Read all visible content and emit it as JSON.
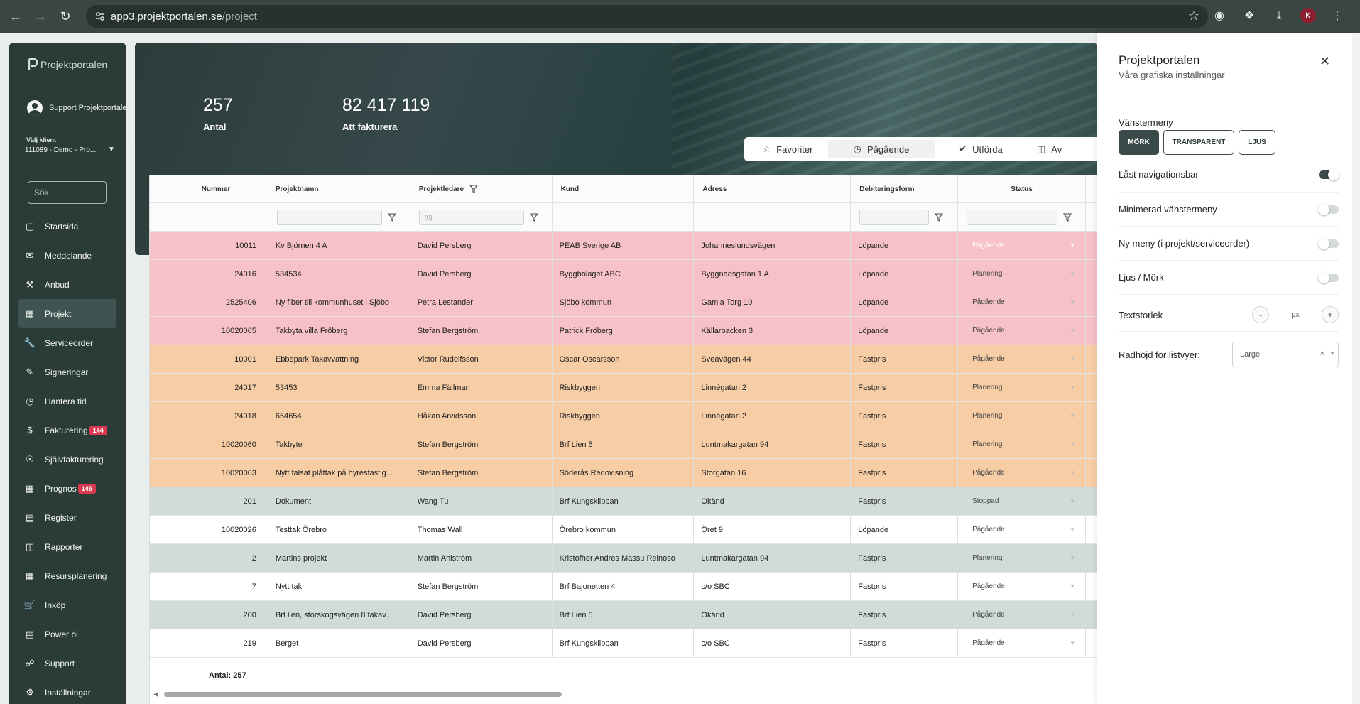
{
  "browser": {
    "url_host": "app3.projektportalen.se",
    "url_path": "/project",
    "profile_initial": "K"
  },
  "sidebar": {
    "logo_text": "Projektportalen",
    "user_name": "Support Projektportalen",
    "client_label": "Välj klient",
    "client_value": "111089 - Demo - Pro...",
    "search_placeholder": "Sök",
    "items": [
      {
        "label": "Startsida",
        "icon": "home-icon"
      },
      {
        "label": "Meddelande",
        "icon": "message-icon"
      },
      {
        "label": "Anbud",
        "icon": "gavel-icon"
      },
      {
        "label": "Projekt",
        "icon": "grid-icon",
        "active": true
      },
      {
        "label": "Serviceorder",
        "icon": "wrench-icon"
      },
      {
        "label": "Signeringar",
        "icon": "signature-icon"
      },
      {
        "label": "Hantera tid",
        "icon": "clock-icon"
      },
      {
        "label": "Fakturering",
        "icon": "dollar-icon",
        "badge": "144"
      },
      {
        "label": "Självfakturering",
        "icon": "coin-icon"
      },
      {
        "label": "Prognos",
        "icon": "grid-icon",
        "badge": "145"
      },
      {
        "label": "Register",
        "icon": "register-icon"
      },
      {
        "label": "Rapporter",
        "icon": "report-icon"
      },
      {
        "label": "Resursplanering",
        "icon": "calendar-icon"
      },
      {
        "label": "Inköp",
        "icon": "cart-icon"
      },
      {
        "label": "Power bi",
        "icon": "chart-icon"
      },
      {
        "label": "Support",
        "icon": "support-icon"
      },
      {
        "label": "Inställningar",
        "icon": "settings-icon"
      }
    ]
  },
  "hero": {
    "stats": [
      {
        "value": "257",
        "label": "Antal"
      },
      {
        "value": "82 417 119",
        "label": "Att fakturera"
      }
    ],
    "tabs": [
      {
        "label": "Favoriter",
        "icon": "star-icon"
      },
      {
        "label": "Pågående",
        "icon": "clock-icon",
        "active": true
      },
      {
        "label": "Utförda",
        "icon": "check-circle-icon"
      },
      {
        "label": "Av",
        "icon": "archive-icon"
      }
    ]
  },
  "table": {
    "columns": [
      "Nummer",
      "Projektnamn",
      "Projektledare",
      "Kund",
      "Adress",
      "Debiteringsform",
      "Status"
    ],
    "filter_projektledare_placeholder": "(0)",
    "rows": [
      {
        "nummer": "10011",
        "projektnamn": "Kv Björnen 4 A",
        "projektledare": "David Persberg",
        "kund": "PEAB Sverige AB",
        "adress": "Johanneslundsvägen",
        "debitering": "Löpande",
        "status": "Pågående",
        "color": "pink"
      },
      {
        "nummer": "24016",
        "projektnamn": "534534",
        "projektledare": "David Persberg",
        "kund": "Byggbolaget ABC",
        "adress": "Byggnadsgatan 1 A",
        "debitering": "Löpande",
        "status": "Planering",
        "color": "pink"
      },
      {
        "nummer": "2525406",
        "projektnamn": "Ny fiber till kommunhuset i Sjöbo",
        "projektledare": "Petra Lestander",
        "kund": "Sjöbo kommun",
        "adress": "Gamla Torg 10",
        "debitering": "Löpande",
        "status": "Pågående",
        "color": "pink"
      },
      {
        "nummer": "10020065",
        "projektnamn": "Takbyta villa Fröberg",
        "projektledare": "Stefan Bergström",
        "kund": "Patrick Fröberg",
        "adress": "Källarbacken 3",
        "debitering": "Löpande",
        "status": "Pågående",
        "color": "pink"
      },
      {
        "nummer": "10001",
        "projektnamn": "Ebbepark Takavvattning",
        "projektledare": "Victor Rudolfsson",
        "kund": "Oscar Oscarsson",
        "adress": "Sveavägen 44",
        "debitering": "Fastpris",
        "status": "Pågående",
        "color": "orange"
      },
      {
        "nummer": "24017",
        "projektnamn": "53453",
        "projektledare": "Emma Fällman",
        "kund": "Riskbyggen",
        "adress": "Linnégatan 2",
        "debitering": "Fastpris",
        "status": "Planering",
        "color": "orange"
      },
      {
        "nummer": "24018",
        "projektnamn": "654654",
        "projektledare": "Håkan Arvidsson",
        "kund": "Riskbyggen",
        "adress": "Linnégatan 2",
        "debitering": "Fastpris",
        "status": "Planering",
        "color": "orange"
      },
      {
        "nummer": "10020060",
        "projektnamn": "Takbyte",
        "projektledare": "Stefan Bergström",
        "kund": "Brf Lien 5",
        "adress": "Luntmakargatan 94",
        "debitering": "Fastpris",
        "status": "Planering",
        "color": "orange"
      },
      {
        "nummer": "10020063",
        "projektnamn": "Nytt falsat plåttak på hyresfastig...",
        "projektledare": "Stefan Bergström",
        "kund": "Söderås Redovisning",
        "adress": "Storgatan 16",
        "debitering": "Fastpris",
        "status": "Pågående",
        "color": "orange"
      },
      {
        "nummer": "201",
        "projektnamn": "Dokument",
        "projektledare": "Wang Tu",
        "kund": "Brf Kungsklippan",
        "adress": "Okänd",
        "debitering": "Fastpris",
        "status": "Stoppad",
        "color": "grey"
      },
      {
        "nummer": "10020026",
        "projektnamn": "Testtak Örebro",
        "projektledare": "Thomas Wall",
        "kund": "Örebro kommun",
        "adress": "Öret 9",
        "debitering": "Löpande",
        "status": "Pågående",
        "color": "white"
      },
      {
        "nummer": "2",
        "projektnamn": "Martins projekt",
        "projektledare": "Martin Ahlström",
        "kund": "Kristofher Andres Massu Reinoso",
        "adress": "Luntmakargatan 94",
        "debitering": "Fastpris",
        "status": "Planering",
        "color": "grey"
      },
      {
        "nummer": "7",
        "projektnamn": "Nytt tak",
        "projektledare": "Stefan Bergström",
        "kund": "Brf Bajonetten 4",
        "adress": "c/o SBC",
        "debitering": "Fastpris",
        "status": "Pågående",
        "color": "white"
      },
      {
        "nummer": "200",
        "projektnamn": "Brf lien, storskogsvägen 8 takav...",
        "projektledare": "David Persberg",
        "kund": "Brf Lien 5",
        "adress": "Okänd",
        "debitering": "Fastpris",
        "status": "Pågående",
        "color": "grey"
      },
      {
        "nummer": "219",
        "projektnamn": "Berget",
        "projektledare": "David Persberg",
        "kund": "Brf Kungsklippan",
        "adress": "c/o SBC",
        "debitering": "Fastpris",
        "status": "Pågående",
        "color": "white"
      }
    ],
    "footer_count": "Antal: 257"
  },
  "settings_panel": {
    "title": "Projektportalen",
    "subtitle": "Våra grafiska inställningar",
    "vanstermeny_label": "Vänstermeny",
    "vanstermeny_options": [
      "MÖRK",
      "TRANSPARENT",
      "LJUS"
    ],
    "vanstermeny_selected": "MÖRK",
    "toggles": [
      {
        "label": "Låst navigationsbar",
        "on": true
      },
      {
        "label": "Minimerad vänstermeny",
        "on": false
      },
      {
        "label": "Ny meny (i projekt/serviceorder)",
        "on": false
      },
      {
        "label": "Ljus / Mörk",
        "on": false
      }
    ],
    "textsize_label": "Textstorlek",
    "textsize_minus": "-",
    "textsize_unit": "px",
    "textsize_plus": "+",
    "row_height_label": "Radhöjd för listvyer:",
    "row_height_value": "Large",
    "row_height_clear": "×"
  },
  "colors": {
    "sidebar_bg": "#2b3b38",
    "row_pink": "#f6c1c7",
    "row_orange": "#f7cda5",
    "row_grey": "#d0dbda",
    "badge_red": "#d9394e"
  }
}
